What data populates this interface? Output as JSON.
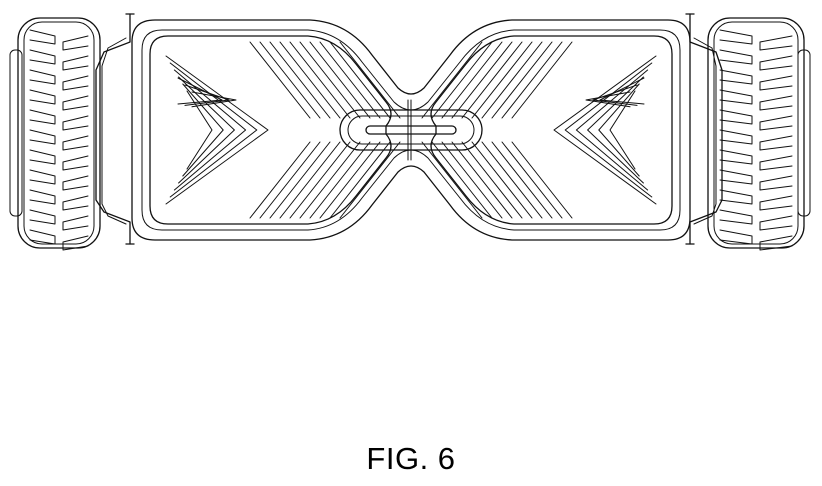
{
  "figure": {
    "label": "FIG. 6"
  },
  "colors": {
    "line": "#111111",
    "background": "#ffffff"
  }
}
